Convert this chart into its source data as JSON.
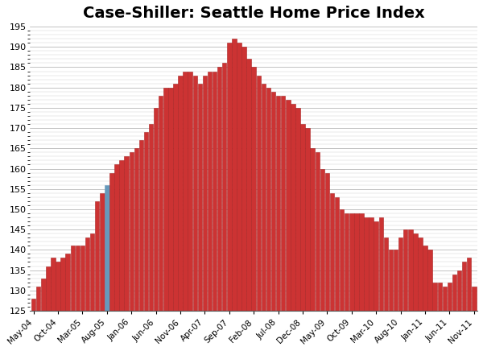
{
  "title": "Case-Shiller: Seattle Home Price Index",
  "bar_color": "#cc3333",
  "bar_edge_color": "#aa2222",
  "highlight_bar_color": "#6699bb",
  "background_color": "#ffffff",
  "ylim": [
    125,
    195
  ],
  "yticks": [
    125,
    130,
    135,
    140,
    145,
    150,
    155,
    160,
    165,
    170,
    175,
    180,
    185,
    190,
    195
  ],
  "highlight_index": 15,
  "labels": [
    "May-04",
    "Oct-04",
    "Mar-05",
    "Aug-05",
    "Jan-06",
    "Jun-06",
    "Nov-06",
    "Apr-07",
    "Sep-07",
    "Feb-08",
    "Jul-08",
    "Dec-08",
    "May-09",
    "Oct-09",
    "Mar-10",
    "Aug-10",
    "Jan-11",
    "Jun-11",
    "Nov-11"
  ],
  "label_indices": [
    0,
    5,
    10,
    15,
    20,
    25,
    30,
    35,
    40,
    45,
    50,
    55,
    60,
    65,
    70,
    75,
    80,
    85,
    90
  ],
  "values": [
    128,
    131,
    133,
    136,
    138,
    137,
    138,
    139,
    141,
    141,
    141,
    143,
    144,
    152,
    154,
    156,
    159,
    161,
    162,
    163,
    164,
    165,
    167,
    169,
    171,
    175,
    178,
    180,
    180,
    181,
    183,
    184,
    184,
    183,
    181,
    183,
    184,
    184,
    185,
    186,
    191,
    192,
    191,
    190,
    187,
    185,
    183,
    181,
    180,
    179,
    178,
    178,
    177,
    176,
    175,
    171,
    170,
    165,
    164,
    160,
    159,
    154,
    153,
    150,
    149,
    149,
    149,
    149,
    148,
    148,
    147,
    148,
    143,
    140,
    140,
    143,
    145,
    145,
    144,
    143,
    141,
    140,
    132,
    132,
    131,
    132,
    134,
    135,
    137,
    138,
    131
  ],
  "title_fontsize": 14,
  "xlabel_fontsize": 7.5,
  "ylabel_fontsize": 8,
  "bar_bottom": 125
}
